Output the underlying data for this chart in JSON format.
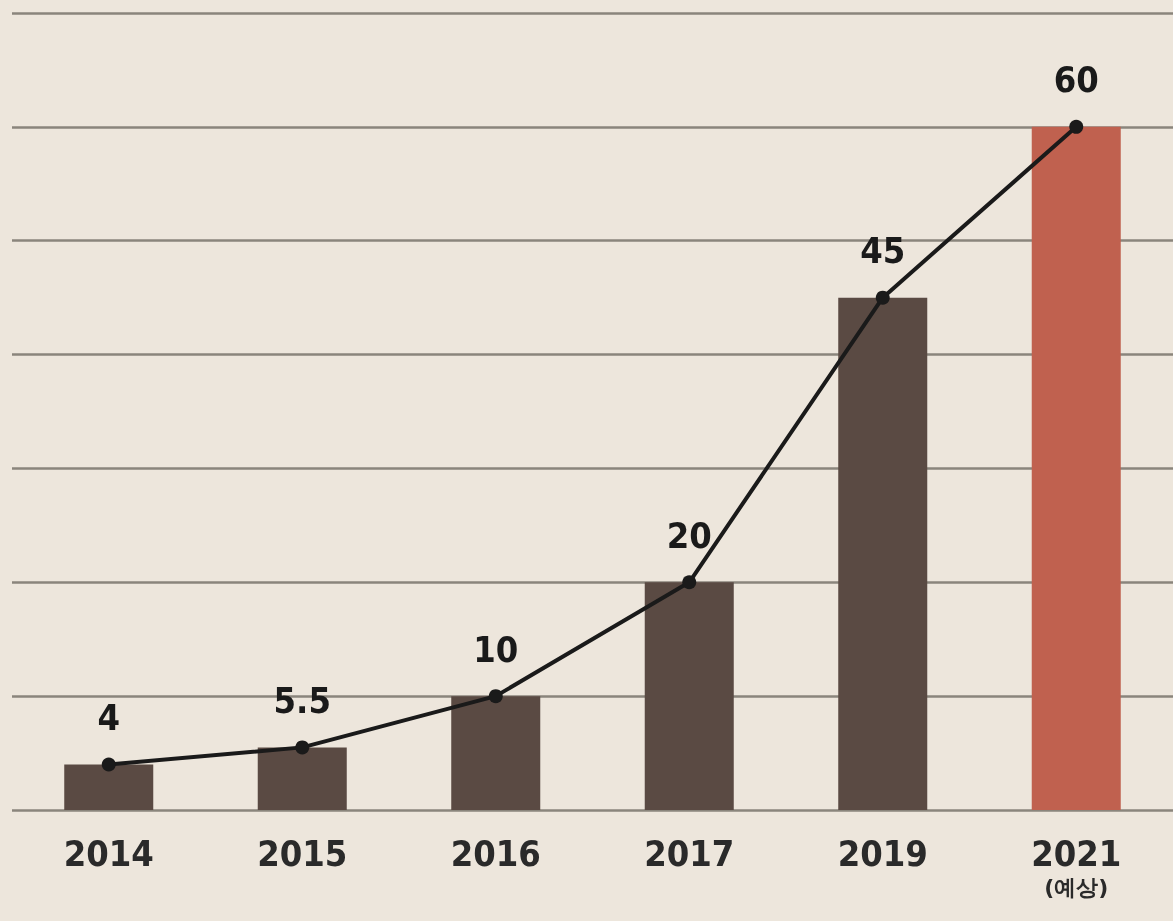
{
  "chart_data": {
    "type": "bar",
    "categories": [
      "2014",
      "2015",
      "2016",
      "2017",
      "2019",
      "2021\n(예상)"
    ],
    "series": [
      {
        "colors": [
          "#5a4a43",
          "#5a4a43",
          "#5a4a43",
          "#5a4a43",
          "#5a4a43",
          "#c0614f"
        ],
        "values": [
          4,
          5.5,
          10,
          20,
          45,
          60
        ]
      },
      {
        "type": "line",
        "color": "#1a1a1a",
        "values": [
          4,
          5.5,
          10,
          20,
          45,
          60
        ],
        "value_labels": [
          "4",
          "5.5",
          "10",
          "20",
          "45",
          "60"
        ]
      }
    ],
    "ylim": [
      0,
      70
    ],
    "yticks": [
      {
        "value": 0,
        "label": null
      },
      {
        "value": 10,
        "label": null
      },
      {
        "value": 20,
        "label": null
      },
      {
        "value": 30,
        "label": null
      },
      {
        "value": 40,
        "label": null
      },
      {
        "value": 50,
        "label": null
      },
      {
        "value": 60,
        "label": null
      },
      {
        "value": 70,
        "label": null
      }
    ],
    "tick_labels": "x",
    "grid": "y",
    "marker": "circle",
    "line_style": "solid"
  }
}
